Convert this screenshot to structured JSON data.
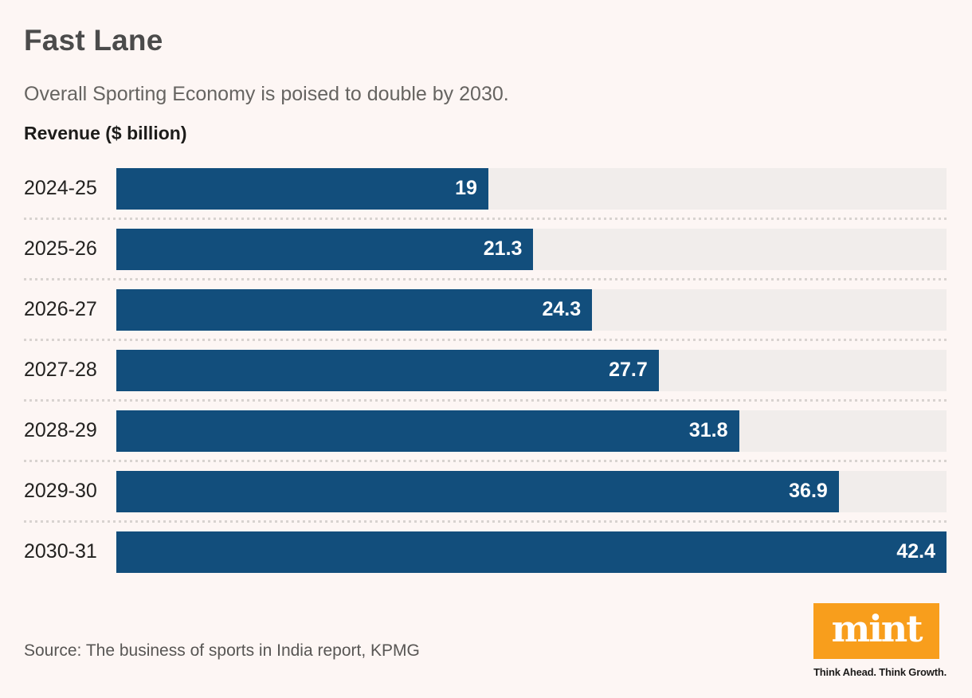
{
  "header": {
    "title": "Fast Lane",
    "subtitle": "Overall Sporting Economy is poised to double by 2030.",
    "axis_title": "Revenue ($ billion)"
  },
  "chart_data": {
    "type": "bar",
    "orientation": "horizontal",
    "title": "Fast Lane",
    "subtitle": "Overall Sporting Economy is poised to double by 2030.",
    "xlabel": "Revenue ($ billion)",
    "categories": [
      "2024-25",
      "2025-26",
      "2026-27",
      "2027-28",
      "2028-29",
      "2029-30",
      "2030-31"
    ],
    "values": [
      19,
      21.3,
      24.3,
      27.7,
      31.8,
      36.9,
      42.4
    ],
    "value_labels": [
      "19",
      "21.3",
      "24.3",
      "27.7",
      "31.8",
      "36.9",
      "42.4"
    ],
    "xlim": [
      0,
      42.4
    ],
    "grid": false,
    "legend": "none",
    "separator_style": "dotted"
  },
  "footer": {
    "source": "Source: The business of sports in India report, KPMG",
    "logo_text": "mint",
    "tagline": "Think Ahead. Think Growth."
  },
  "colors": {
    "background": "#fdf6f4",
    "bar": "#124e7c",
    "bar_track": "#f1edeb",
    "separator_dot": "#d8d3d0",
    "value_text": "#ffffff",
    "logo_orange": "#f89e1c"
  }
}
